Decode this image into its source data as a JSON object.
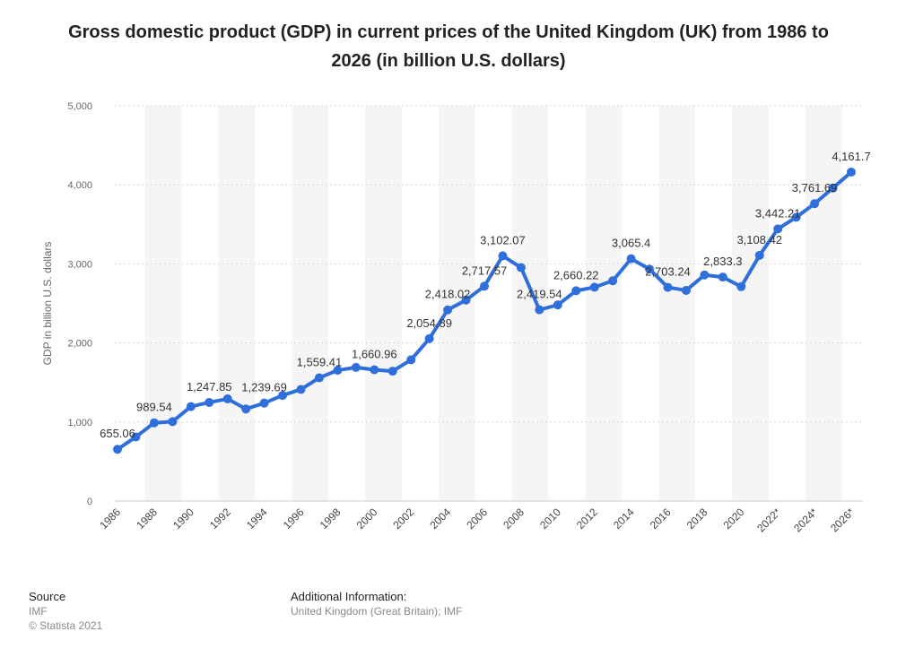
{
  "chart_data": {
    "type": "line",
    "title": "Gross domestic product (GDP) in current prices of the United Kingdom (UK) from 1986 to 2026 (in billion U.S. dollars)",
    "ylabel": "GDP in billion U.S. dollars",
    "xlabel": "",
    "ylim": [
      0,
      5000
    ],
    "yticks": [
      0,
      1000,
      2000,
      3000,
      4000,
      5000
    ],
    "ytick_labels": [
      "0",
      "1,000",
      "2,000",
      "3,000",
      "4,000",
      "5,000"
    ],
    "grid": true,
    "legend": "none",
    "line_color": "#2f6fdb",
    "x": [
      "1986",
      "1987",
      "1988",
      "1989",
      "1990",
      "1991",
      "1992",
      "1993",
      "1994",
      "1995",
      "1996",
      "1997",
      "1998",
      "1999",
      "2000",
      "2001",
      "2002",
      "2003",
      "2004",
      "2005",
      "2006",
      "2007",
      "2008",
      "2009",
      "2010",
      "2011",
      "2012",
      "2013",
      "2014",
      "2015",
      "2016",
      "2017",
      "2018",
      "2019",
      "2020",
      "2021",
      "2022*",
      "2023*",
      "2024*",
      "2025*",
      "2026*"
    ],
    "x_tick_labels": [
      "1986",
      "1988",
      "1990",
      "1992",
      "1994",
      "1996",
      "1998",
      "2000",
      "2002",
      "2004",
      "2006",
      "2008",
      "2010",
      "2012",
      "2014",
      "2016",
      "2018",
      "2020",
      "2022*",
      "2024*",
      "2026*"
    ],
    "values": [
      655.06,
      811,
      989.54,
      1005,
      1195,
      1247.85,
      1293,
      1165,
      1239.69,
      1337,
      1412,
      1559.41,
      1654,
      1691,
      1660.96,
      1643,
      1787,
      2054.89,
      2418.02,
      2543,
      2717.57,
      3102.07,
      2953,
      2419.54,
      2481,
      2660.22,
      2705,
      2786,
      3065.4,
      2934,
      2703.24,
      2665,
      2860,
      2833.3,
      2712,
      3108.42,
      3442.21,
      3590,
      3761.69,
      3960,
      4161.7
    ],
    "data_labels": [
      {
        "x": "1986",
        "text": "655.06"
      },
      {
        "x": "1988",
        "text": "989.54"
      },
      {
        "x": "1991",
        "text": "1,247.85"
      },
      {
        "x": "1994",
        "text": "1,239.69"
      },
      {
        "x": "1997",
        "text": "1,559.41"
      },
      {
        "x": "2000",
        "text": "1,660.96"
      },
      {
        "x": "2003",
        "text": "2,054.89"
      },
      {
        "x": "2004",
        "text": "2,418.02"
      },
      {
        "x": "2006",
        "text": "2,717.57"
      },
      {
        "x": "2007",
        "text": "3,102.07"
      },
      {
        "x": "2009",
        "text": "2,419.54"
      },
      {
        "x": "2011",
        "text": "2,660.22"
      },
      {
        "x": "2014",
        "text": "3,065.4"
      },
      {
        "x": "2016",
        "text": "2,703.24"
      },
      {
        "x": "2019",
        "text": "2,833.3"
      },
      {
        "x": "2021",
        "text": "3,108.42"
      },
      {
        "x": "2022*",
        "text": "3,442.21"
      },
      {
        "x": "2024*",
        "text": "3,761.69"
      },
      {
        "x": "2026*",
        "text": "4,161.7"
      }
    ]
  },
  "footer": {
    "source_heading": "Source",
    "source_name": "IMF",
    "copyright": "© Statista 2021",
    "additional_heading": "Additional Information:",
    "additional_text": "United Kingdom (Great Britain); IMF"
  }
}
